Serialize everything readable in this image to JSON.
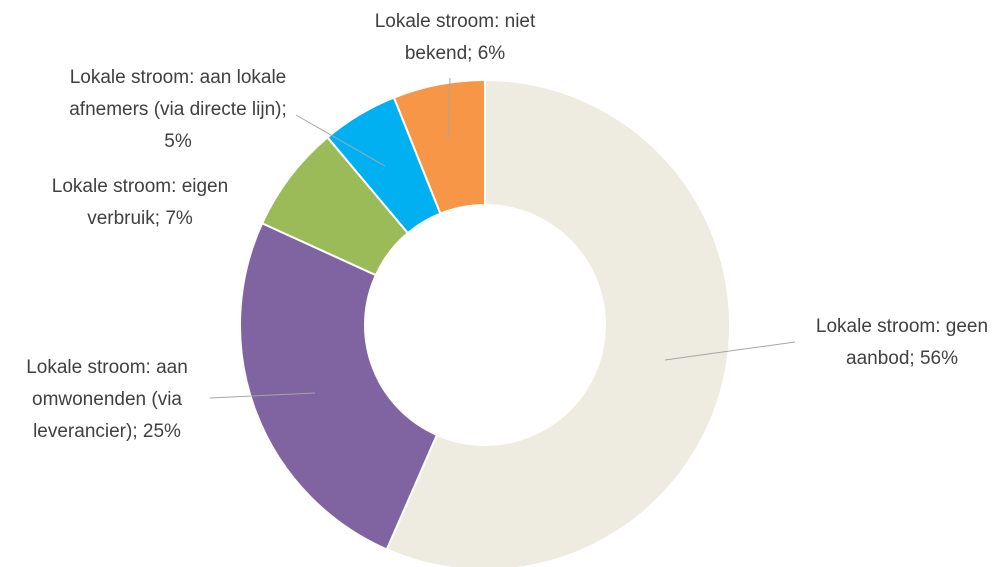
{
  "chart_data": {
    "type": "donut",
    "categories": [
      "Lokale stroom: geen aanbod; 56%",
      "Lokale stroom: aan omwonenden (via leverancier); 25%",
      "Lokale stroom: eigen verbruik; 7%",
      "Lokale stroom: aan lokale afnemers (via directe lijn); 5%",
      "Lokale stroom: niet bekend; 6%"
    ],
    "values": [
      56,
      25,
      7,
      5,
      6
    ],
    "colors": [
      "#eeebe0",
      "#8064a2",
      "#9bbb59",
      "#00b0f0",
      "#f79646"
    ]
  }
}
